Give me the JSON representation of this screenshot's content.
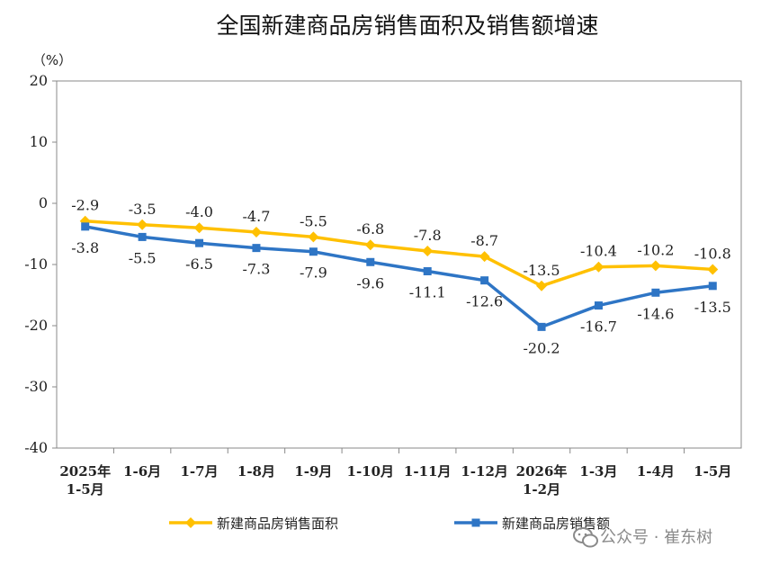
{
  "watermark": "公众号 · 崔东树",
  "colors": {
    "area": "#FFC000",
    "amount": "#2E75C5"
  },
  "chart_data": {
    "type": "line",
    "title": "全国新建商品房销售面积及销售额增速",
    "yunit": "（%）",
    "ylim": [
      -40,
      20
    ],
    "yticks": [
      20,
      10,
      0,
      -10,
      -20,
      -30,
      -40
    ],
    "grid": false,
    "legend": "bottom",
    "categories": [
      [
        "2025年",
        "1-5月"
      ],
      [
        "1-6月"
      ],
      [
        "1-7月"
      ],
      [
        "1-8月"
      ],
      [
        "1-9月"
      ],
      [
        "1-10月"
      ],
      [
        "1-11月"
      ],
      [
        "1-12月"
      ],
      [
        "2026年",
        "1-2月"
      ],
      [
        "1-3月"
      ],
      [
        "1-4月"
      ],
      [
        "1-5月"
      ]
    ],
    "series": [
      {
        "name": "新建商品房销售面积",
        "values": [
          -2.9,
          -3.5,
          -4.0,
          -4.7,
          -5.5,
          -6.8,
          -7.8,
          -8.7,
          -13.5,
          -10.4,
          -10.2,
          -10.8
        ]
      },
      {
        "name": "新建商品房销售额",
        "values": [
          -3.8,
          -5.5,
          -6.5,
          -7.3,
          -7.9,
          -9.6,
          -11.1,
          -12.6,
          -20.2,
          -16.7,
          -14.6,
          -13.5
        ]
      }
    ]
  }
}
